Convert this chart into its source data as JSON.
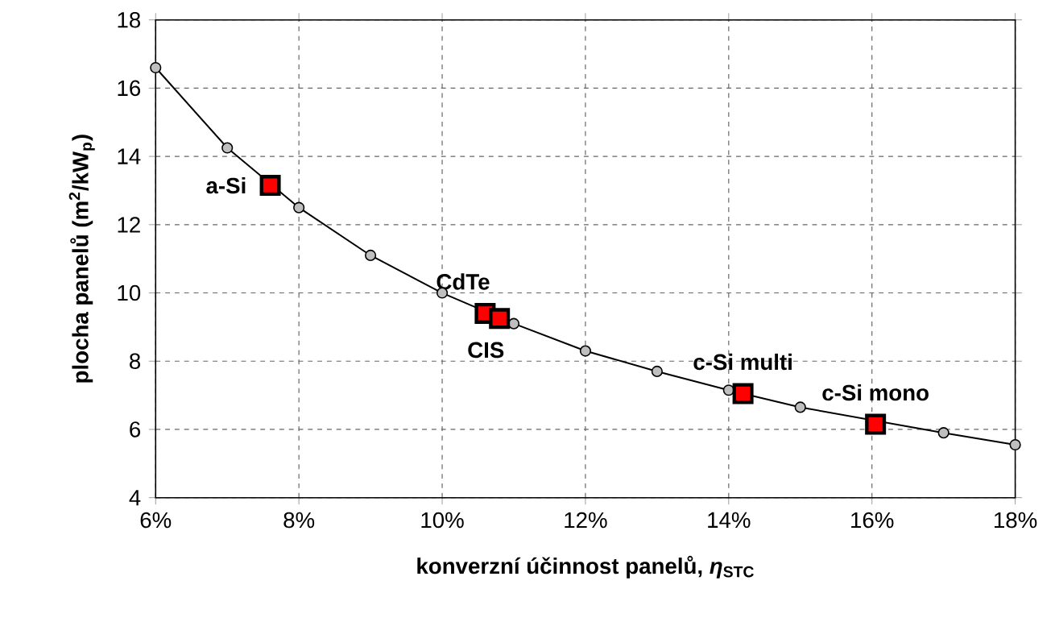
{
  "chart_data": {
    "type": "line",
    "xlabel": "konverzní účinnost panelů, *η*$_{STC}$",
    "ylabel": "plocha panelů (m$^{2}$/kW$_{p}$)",
    "xlim": [
      6,
      18
    ],
    "ylim": [
      4,
      18
    ],
    "xticks": [
      {
        "value": 6,
        "label": "6%"
      },
      {
        "value": 8,
        "label": "8%"
      },
      {
        "value": 10,
        "label": "10%"
      },
      {
        "value": 12,
        "label": "12%"
      },
      {
        "value": 14,
        "label": "14%"
      },
      {
        "value": 16,
        "label": "16%"
      },
      {
        "value": 18,
        "label": "18%"
      }
    ],
    "yticks": [
      4,
      6,
      8,
      10,
      12,
      14,
      16,
      18
    ],
    "grid": true,
    "series": [
      {
        "color": "#000000",
        "marker": "circle",
        "x": [
          6,
          7,
          8,
          9,
          10,
          11,
          12,
          13,
          14,
          15,
          16,
          17,
          18
        ],
        "values": [
          16.6,
          14.25,
          12.5,
          11.1,
          10.0,
          9.1,
          8.3,
          7.7,
          7.15,
          6.65,
          null,
          5.9,
          5.55
        ]
      },
      {
        "type": "scatter",
        "color": "#ff0000",
        "marker": "square",
        "x": [
          7.6,
          10.6,
          10.8,
          14.2,
          16.05
        ],
        "values": [
          13.15,
          9.4,
          9.25,
          7.05,
          6.15
        ]
      }
    ],
    "annotations": [
      {
        "text": "a-Si",
        "x": 7.6,
        "y": 13.15
      },
      {
        "text": "CdTe",
        "x": 10.6,
        "y": 9.4
      },
      {
        "text": "CIS",
        "x": 10.8,
        "y": 9.25
      },
      {
        "text": "c-Si multi",
        "x": 14.2,
        "y": 7.05
      },
      {
        "text": "c-Si mono",
        "x": 16.05,
        "y": 6.15
      }
    ]
  }
}
